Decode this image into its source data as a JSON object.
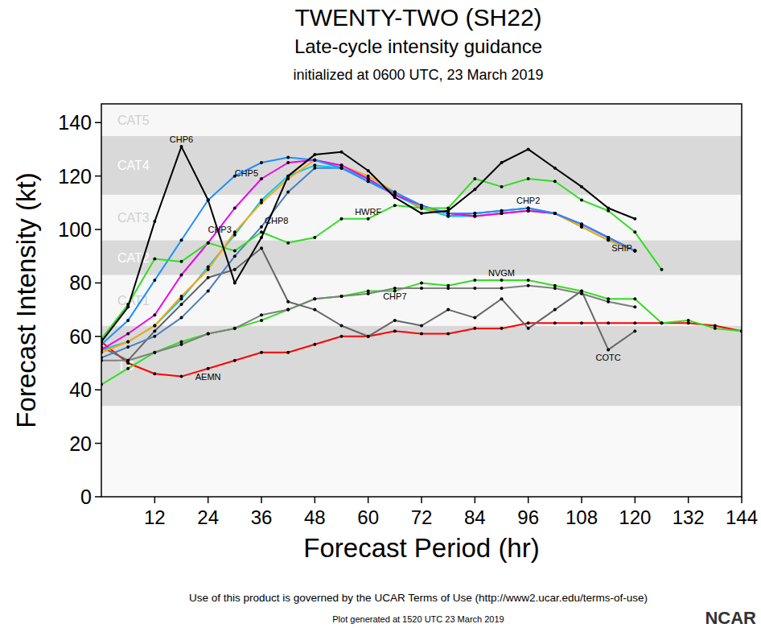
{
  "chart_data": {
    "type": "line",
    "title": "TWENTY-TWO (SH22)",
    "subtitle": "Late-cycle intensity guidance",
    "annotations": [
      "initialized at 0600 UTC, 23 March 2019",
      "Use of this product is governed by the UCAR Terms of Use (http://www2.ucar.edu/terms-of-use)",
      "Plot generated at 1520 UTC  23 March 2019",
      "NCAR"
    ],
    "x_label": "Forecast Period (hr)",
    "y_label": "Forecast Intensity (kt)",
    "xlim": [
      0,
      144
    ],
    "xticks": [
      12,
      24,
      36,
      48,
      60,
      72,
      84,
      96,
      108,
      120,
      132,
      144
    ],
    "ylim": [
      0,
      147
    ],
    "yticks": [
      0,
      20,
      40,
      60,
      80,
      100,
      120,
      140
    ],
    "marker": "dot",
    "bands": [
      {
        "label": "TS",
        "from": 34,
        "to": 64,
        "color": "#d9d9d9"
      },
      {
        "label": "CAT1",
        "from": 64,
        "to": 83,
        "color": "#f7f7f7"
      },
      {
        "label": "CAT2",
        "from": 83,
        "to": 96,
        "color": "#d9d9d9"
      },
      {
        "label": "CAT3",
        "from": 96,
        "to": 113,
        "color": "#f7f7f7"
      },
      {
        "label": "CAT4",
        "from": 113,
        "to": 135,
        "color": "#d9d9d9"
      },
      {
        "label": "CAT5",
        "from": 135,
        "to": 147,
        "color": "#f7f7f7"
      }
    ],
    "x": [
      0,
      6,
      12,
      18,
      24,
      30,
      36,
      42,
      48,
      54,
      60,
      66,
      72,
      78,
      84,
      90,
      96,
      102,
      108,
      114,
      120,
      126,
      132,
      138,
      144
    ],
    "series": [
      {
        "name": "AEMN",
        "color": "#ff0000",
        "values": [
          58,
          50,
          46,
          45,
          48,
          51,
          54,
          54,
          57,
          60,
          60,
          62,
          61,
          61,
          63,
          63,
          65,
          65,
          65,
          65,
          65,
          65,
          65,
          64,
          62
        ]
      },
      {
        "name": "NVGM",
        "color": "#33dd22",
        "values": [
          42,
          48,
          54,
          58,
          61,
          63,
          66,
          70,
          74,
          75,
          77,
          77,
          80,
          79,
          81,
          81,
          81,
          79,
          77,
          74,
          74,
          65,
          66,
          63,
          62
        ]
      },
      {
        "name": "CHP7",
        "color": "#808080",
        "values": [
          51,
          51,
          54,
          57,
          61,
          63,
          68,
          70,
          74,
          75,
          76,
          78,
          78,
          78,
          78,
          78,
          79,
          78,
          76,
          73,
          71,
          null,
          null,
          null,
          null
        ]
      },
      {
        "name": "COTC",
        "color": "#666666",
        "values": [
          56,
          51,
          62,
          72,
          82,
          85,
          93,
          73,
          70,
          64,
          60,
          66,
          64,
          70,
          67,
          74,
          63,
          70,
          77,
          55,
          62,
          null,
          null,
          null,
          null
        ]
      },
      {
        "name": "CHP8",
        "color": "#4a7fc0",
        "values": [
          52,
          56,
          60,
          67,
          77,
          90,
          101,
          114,
          123,
          123,
          118,
          113,
          108,
          105,
          106,
          107,
          108,
          106,
          102,
          97,
          92,
          null,
          null,
          null,
          null
        ]
      },
      {
        "name": "CHP3",
        "color": "#00ccee",
        "values": [
          55,
          58,
          64,
          74,
          86,
          98,
          111,
          120,
          124,
          123,
          119,
          113,
          108,
          105,
          105,
          106,
          107,
          106,
          101,
          96,
          92,
          null,
          null,
          null,
          null
        ]
      },
      {
        "name": "SHIP",
        "color": "#ffa500",
        "values": [
          54,
          58,
          64,
          75,
          85,
          99,
          110,
          119,
          126,
          124,
          120,
          114,
          108,
          106,
          105,
          106,
          107,
          106,
          101,
          96,
          92,
          null,
          null,
          null,
          null
        ]
      },
      {
        "name": "CHP5",
        "color": "#ee00ee",
        "values": [
          55,
          61,
          68,
          83,
          95,
          108,
          119,
          125,
          126,
          124,
          119,
          113,
          109,
          106,
          105,
          106,
          107,
          106,
          102,
          97,
          92,
          null,
          null,
          null,
          null
        ]
      },
      {
        "name": "CHP2",
        "color": "#1e90ff",
        "values": [
          57,
          66,
          81,
          96,
          111,
          120,
          125,
          127,
          126,
          123,
          118,
          114,
          109,
          106,
          106,
          107,
          108,
          106,
          102,
          97,
          92,
          null,
          null,
          null,
          null
        ]
      },
      {
        "name": "HWRF",
        "color": "#33dd22",
        "values": [
          59,
          72,
          89,
          88,
          95,
          92,
          99,
          95,
          97,
          104,
          104,
          109,
          108,
          108,
          119,
          116,
          119,
          118,
          111,
          107,
          99,
          85,
          null,
          null,
          null
        ]
      },
      {
        "name": "CHP6",
        "color": "#000000",
        "values": [
          58,
          71,
          103,
          131,
          111,
          80,
          97,
          120,
          128,
          129,
          122,
          112,
          106,
          107,
          115,
          125,
          130,
          123,
          116,
          108,
          104,
          null,
          null,
          null,
          null
        ]
      }
    ]
  }
}
